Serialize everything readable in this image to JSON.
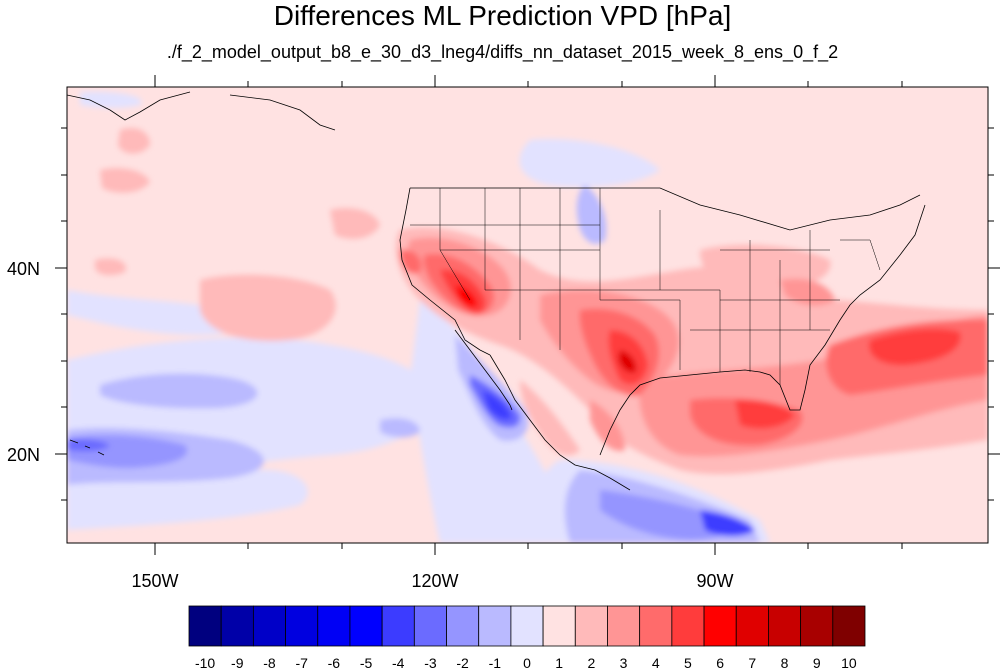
{
  "title": "Differences ML Prediction VPD [hPa]",
  "subtitle": "./f_2_model_output_b8_e_30_d3_lneg4/diffs_nn_dataset_2015_week_8_ens_0_f_2",
  "map": {
    "lon_labels": [
      "150W",
      "120W",
      "90W"
    ],
    "lat_labels": [
      "40N",
      "20N"
    ]
  },
  "colorbar": {
    "labels": [
      "-10",
      "-9",
      "-8",
      "-7",
      "-6",
      "-5",
      "-4",
      "-3",
      "-2",
      "-1",
      "0",
      "1",
      "2",
      "3",
      "4",
      "5",
      "6",
      "7",
      "8",
      "9",
      "10"
    ],
    "colors": [
      "#00007f",
      "#0000a8",
      "#0000c8",
      "#0000e0",
      "#0000f5",
      "#0000ff",
      "#3c3cff",
      "#6b6bff",
      "#9595ff",
      "#babaff",
      "#e2e2ff",
      "#ffe2e2",
      "#ffbaba",
      "#ff9595",
      "#ff6b6b",
      "#ff3c3c",
      "#ff0000",
      "#e00000",
      "#c80000",
      "#a80000",
      "#7f0000"
    ]
  }
}
